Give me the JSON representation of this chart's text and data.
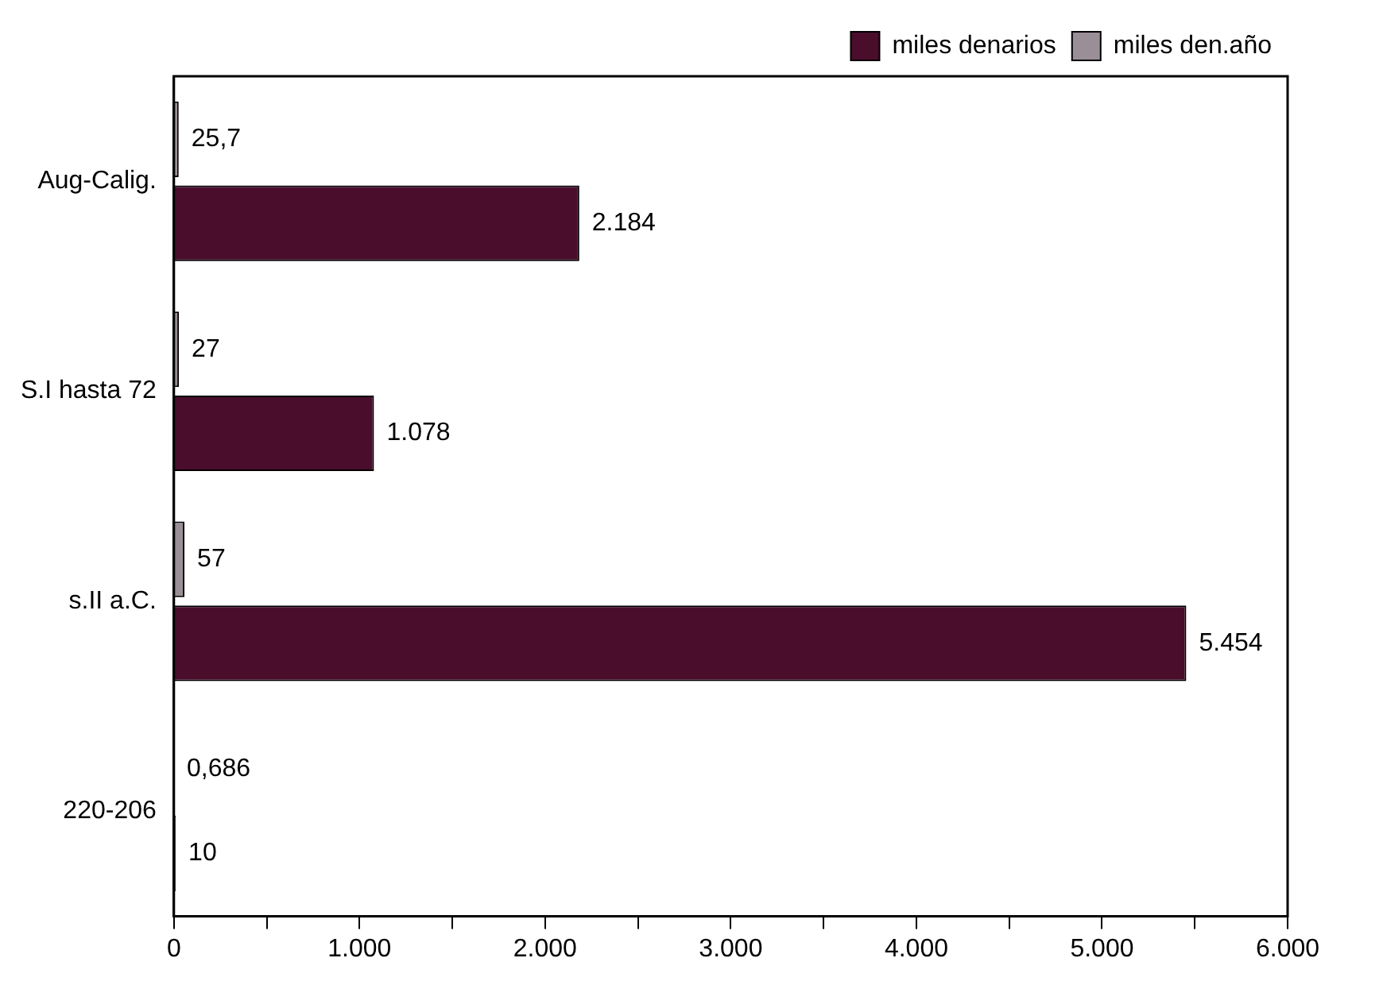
{
  "chart_data": {
    "type": "bar",
    "orientation": "horizontal",
    "categories": [
      "Aug-Calig.",
      "S.I hasta 72",
      "s.II a.C.",
      "220-206"
    ],
    "series": [
      {
        "name": "miles den.año",
        "color": "#9a8f96",
        "values": [
          25.7,
          27,
          57,
          0.686
        ],
        "value_labels": [
          "25,7",
          "27",
          "57",
          "0,686"
        ]
      },
      {
        "name": "miles denarios",
        "color": "#4a0d2c",
        "values": [
          2184,
          1078,
          5454,
          10
        ],
        "value_labels": [
          "2.184",
          "1.078",
          "5.454",
          "10"
        ]
      }
    ],
    "xlim": [
      0,
      6000
    ],
    "xticks": [
      0,
      {
        "value": 500,
        "label": null
      },
      {
        "value": 1000,
        "label": "1.000"
      },
      {
        "value": 1500,
        "label": null
      },
      {
        "value": 2000,
        "label": "2.000"
      },
      {
        "value": 2500,
        "label": null
      },
      {
        "value": 3000,
        "label": "3.000"
      },
      {
        "value": 3500,
        "label": null
      },
      {
        "value": 4000,
        "label": "4.000"
      },
      {
        "value": 4500,
        "label": null
      },
      {
        "value": 5000,
        "label": "5.000"
      },
      {
        "value": 5500,
        "label": null
      },
      {
        "value": 6000,
        "label": "6.000"
      }
    ],
    "grid": false,
    "legend": "top right"
  }
}
